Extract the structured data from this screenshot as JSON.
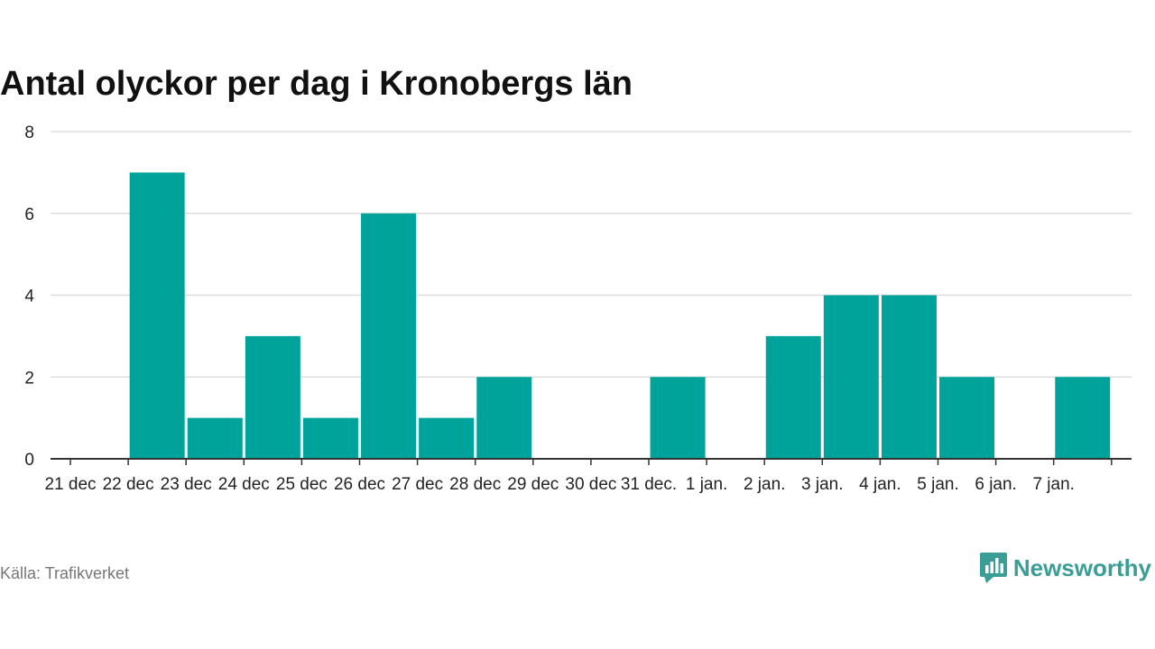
{
  "chart_data": {
    "type": "bar",
    "title": "Antal olyckor per dag i Kronobergs län",
    "categories": [
      "21 dec",
      "22 dec",
      "23 dec",
      "24 dec",
      "25 dec",
      "26 dec",
      "27 dec",
      "28 dec",
      "29 dec",
      "30 dec",
      "31 dec.",
      "1 jan.",
      "2 jan.",
      "3 jan.",
      "4 jan.",
      "5 jan.",
      "6 jan.",
      "7 jan."
    ],
    "values": [
      0,
      7,
      1,
      3,
      1,
      6,
      1,
      2,
      0,
      0,
      2,
      0,
      3,
      4,
      4,
      2,
      0,
      2
    ],
    "yticks": [
      0,
      2,
      4,
      6,
      8
    ],
    "ylim": [
      0,
      8
    ],
    "grid": true,
    "bar_color": "#00a39a",
    "grid_color": "#dddddd"
  },
  "footer": {
    "source": "Källa: Trafikverket",
    "brand": "Newsworthy",
    "brand_icon": "newsworthy-logo-icon",
    "brand_color": "#3a9e97"
  }
}
